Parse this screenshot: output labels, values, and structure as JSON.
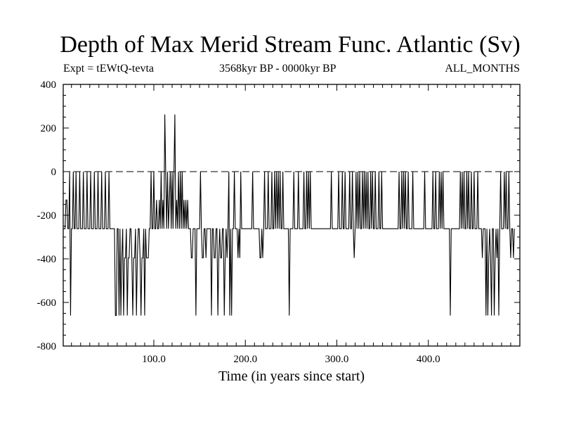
{
  "chart_data": {
    "type": "line",
    "title": "Depth of Max Merid Stream Func. Atlantic (Sv)",
    "subtitle_left": "Expt = tEWtQ-tevta",
    "subtitle_center": "3568kyr BP - 0000kyr BP",
    "subtitle_right": "ALL_MONTHS",
    "xlabel": "Time (in years since start)",
    "ylabel": "",
    "xlim": [
      1,
      500
    ],
    "ylim": [
      -800,
      400
    ],
    "x_ticks": [
      100,
      200,
      300,
      400
    ],
    "x_tick_labels": [
      "100.0",
      "200.0",
      "300.0",
      "400.0"
    ],
    "y_ticks": [
      -800,
      -600,
      -400,
      -200,
      0,
      200,
      400
    ],
    "y_tick_labels": [
      "-800",
      "-600",
      "-400",
      "-200",
      "0",
      "200",
      "400"
    ],
    "reference_line": 0,
    "grid": false,
    "series": [
      {
        "x_start": 1,
        "x_step": 1,
        "values": [
          -262,
          -262,
          -262,
          -130,
          -130,
          -262,
          -262,
          0,
          -660,
          -262,
          -262,
          0,
          -262,
          -262,
          0,
          -262,
          -262,
          -262,
          0,
          -262,
          -262,
          -262,
          0,
          -262,
          -262,
          -262,
          0,
          -262,
          -262,
          -262,
          0,
          -262,
          -262,
          -262,
          0,
          -262,
          -262,
          -262,
          0,
          -262,
          -262,
          -262,
          0,
          -262,
          -262,
          -262,
          0,
          -262,
          -262,
          -262,
          0,
          -262,
          -262,
          -262,
          -262,
          -262,
          -262,
          -660,
          -660,
          -262,
          -262,
          -660,
          -262,
          -660,
          -396,
          -262,
          -660,
          -396,
          -396,
          -262,
          -660,
          -396,
          -396,
          -262,
          -262,
          -396,
          -660,
          -396,
          -396,
          -262,
          -660,
          -396,
          -262,
          -262,
          -396,
          -660,
          -396,
          -396,
          -262,
          -660,
          -262,
          -396,
          -396,
          -396,
          -262,
          -262,
          0,
          -262,
          -262,
          0,
          -262,
          -262,
          -130,
          -262,
          -262,
          -130,
          -262,
          0,
          -262,
          -130,
          -262,
          262,
          0,
          -262,
          0,
          -262,
          -130,
          0,
          -262,
          0,
          -262,
          0,
          262,
          -262,
          -130,
          -262,
          0,
          -262,
          0,
          -262,
          0,
          -262,
          -130,
          -262,
          -130,
          -262,
          -130,
          -262,
          -262,
          -262,
          -396,
          -396,
          -262,
          -262,
          -262,
          -660,
          -262,
          -262,
          -262,
          -262,
          0,
          -262,
          -396,
          -396,
          -262,
          -262,
          -396,
          -262,
          -262,
          -262,
          -262,
          -262,
          -660,
          -262,
          -262,
          -396,
          -396,
          -262,
          -262,
          -660,
          -396,
          -262,
          -396,
          -396,
          -262,
          -262,
          -660,
          -396,
          -262,
          -396,
          -262,
          0,
          -660,
          -262,
          -660,
          -262,
          -262,
          0,
          -262,
          -262,
          -262,
          -396,
          -262,
          -396,
          0,
          -262,
          -262,
          -262,
          -262,
          -262,
          -262,
          -262,
          -262,
          -262,
          -262,
          -262,
          -262,
          0,
          -262,
          -262,
          -262,
          -262,
          -262,
          -262,
          -262,
          -396,
          -396,
          -262,
          -396,
          -262,
          0,
          -262,
          -262,
          -262,
          0,
          -262,
          -262,
          -262,
          0,
          -262,
          -262,
          0,
          -262,
          0,
          -262,
          0,
          -262,
          0,
          -262,
          -262,
          0,
          -262,
          -262,
          -262,
          -262,
          -262,
          -262,
          -660,
          -262,
          -262,
          -262,
          -262,
          0,
          -262,
          -262,
          -262,
          -262,
          0,
          -262,
          -262,
          -262,
          -262,
          -262,
          0,
          -262,
          -262,
          0,
          -262,
          0,
          -262,
          0,
          -262,
          -262,
          -262,
          -262,
          -262,
          -262,
          -262,
          -262,
          -262,
          -262,
          -262,
          -262,
          -262,
          -262,
          -262,
          -262,
          -262,
          -262,
          -262,
          -262,
          -262,
          -262,
          0,
          -262,
          -262,
          -262,
          -262,
          -262,
          -262,
          -262,
          0,
          -262,
          -262,
          -262,
          0,
          -262,
          -262,
          0,
          -262,
          -262,
          -262,
          -262,
          0,
          -262,
          -262,
          0,
          -262,
          -396,
          -262,
          0,
          -262,
          0,
          -262,
          0,
          -262,
          -262,
          0,
          -262,
          0,
          -262,
          0,
          -262,
          0,
          -262,
          -262,
          0,
          -262,
          0,
          -262,
          -262,
          0,
          -262,
          -262,
          -262,
          0,
          -262,
          -262,
          0,
          -262,
          -262,
          -262,
          -262,
          -262,
          -262,
          -262,
          -262,
          -262,
          -262,
          -262,
          -262,
          -262,
          -262,
          -262,
          -262,
          -262,
          -262,
          0,
          -262,
          -262,
          0,
          -262,
          0,
          -262,
          0,
          -262,
          -262,
          0,
          -262,
          -262,
          -262,
          -262,
          0,
          -262,
          -262,
          -262,
          -262,
          -262,
          -262,
          -262,
          -262,
          -262,
          -262,
          -262,
          -262,
          0,
          -262,
          -262,
          -262,
          -262,
          -262,
          -262,
          -262,
          -262,
          0,
          -262,
          -262,
          0,
          -262,
          -262,
          -262,
          0,
          -262,
          0,
          -262,
          0,
          -262,
          -262,
          -262,
          -262,
          -262,
          -262,
          -262,
          -660,
          -262,
          -262,
          -262,
          -262,
          -262,
          -262,
          -262,
          -262,
          -262,
          -262,
          0,
          -262,
          0,
          -262,
          0,
          -262,
          -262,
          0,
          -262,
          0,
          -262,
          -262,
          0,
          -262,
          -262,
          0,
          -262,
          -262,
          -262,
          0,
          -262,
          -262,
          -262,
          -262,
          -396,
          -262,
          -262,
          -262,
          -660,
          -262,
          -660,
          -396,
          -262,
          -396,
          -660,
          -262,
          -262,
          -660,
          -396,
          -262,
          -396,
          -262,
          -660,
          -262,
          0,
          -262,
          -262,
          -262,
          0,
          -262,
          0,
          -262,
          -262,
          0,
          -262,
          -396,
          -262,
          -262,
          -396,
          -262
        ]
      }
    ]
  }
}
